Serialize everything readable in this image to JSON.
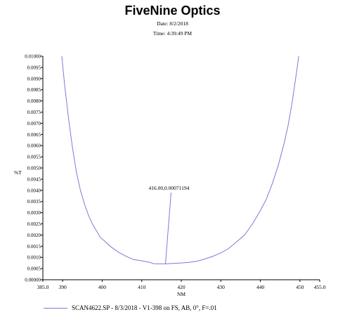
{
  "header": {
    "title": "FiveNine Optics",
    "date": "Date: 8/2/2018",
    "time": "Time: 4:39:49 PM"
  },
  "colors": {
    "series": "#7b7bd6",
    "axis": "#000000",
    "grid": "#dcdcdc"
  },
  "chart_data": {
    "type": "line",
    "title": "FiveNine Optics",
    "xlabel": "NM",
    "ylabel": "%T",
    "xlim": [
      385.0,
      455.0
    ],
    "ylim": [
      0.0,
      0.01
    ],
    "x_ticks": [
      "385.0",
      "390",
      "400",
      "410",
      "420",
      "430",
      "440",
      "450",
      "455.0"
    ],
    "x_tick_values": [
      385,
      390,
      400,
      410,
      420,
      430,
      440,
      450,
      455
    ],
    "y_ticks": [
      "0.00000",
      "0.0005",
      "0.0010",
      "0.0015",
      "0.0020",
      "0.0025",
      "0.0030",
      "0.0035",
      "0.0040",
      "0.0045",
      "0.0050",
      "0.0055",
      "0.0060",
      "0.0065",
      "0.0070",
      "0.0075",
      "0.0080",
      "0.0085",
      "0.0090",
      "0.0095",
      "0.01000"
    ],
    "y_tick_values": [
      0,
      0.0005,
      0.001,
      0.0015,
      0.002,
      0.0025,
      0.003,
      0.0035,
      0.004,
      0.0045,
      0.005,
      0.0055,
      0.006,
      0.0065,
      0.007,
      0.0075,
      0.008,
      0.0085,
      0.009,
      0.0095,
      0.01
    ],
    "grid": false,
    "legend_position": "bottom",
    "series": [
      {
        "name": "SCAN4622.SP - 8/3/2018 - V1-398 on FS, AB, 0°, F=.01",
        "x": [
          389.8,
          390.5,
          391.5,
          392.5,
          393.5,
          394.5,
          395.5,
          396.5,
          397.5,
          398.5,
          399.5,
          400.5,
          402,
          404,
          406,
          408,
          410,
          412,
          413,
          414,
          415,
          416,
          418,
          420,
          422,
          424,
          426,
          428,
          430,
          432,
          434,
          436,
          438,
          440,
          441.5,
          443,
          444.5,
          446,
          447,
          448,
          449,
          449.7
        ],
        "y": [
          0.01,
          0.0087,
          0.0072,
          0.0059,
          0.0048,
          0.004,
          0.0034,
          0.0029,
          0.0025,
          0.0022,
          0.0019,
          0.00175,
          0.0015,
          0.00125,
          0.00105,
          0.0009,
          0.00085,
          0.00078,
          0.00072,
          0.00071,
          0.00071,
          0.00071194,
          0.00073,
          0.00075,
          0.00078,
          0.00083,
          0.00093,
          0.00105,
          0.0012,
          0.0014,
          0.0017,
          0.002,
          0.0025,
          0.0031,
          0.0036,
          0.0043,
          0.0051,
          0.0061,
          0.0069,
          0.0079,
          0.0091,
          0.01
        ]
      }
    ],
    "annotations": [
      {
        "text": "416.00,0.00071194",
        "x": 416.0,
        "y": 0.00071194,
        "label_y": 0.0039
      }
    ]
  }
}
